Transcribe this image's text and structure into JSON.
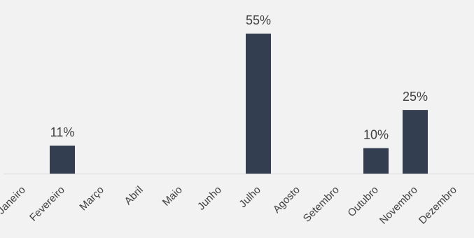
{
  "chart_data": {
    "type": "bar",
    "categories": [
      "Janeiro",
      "Fevereiro",
      "Março",
      "Abril",
      "Maio",
      "Junho",
      "Julho",
      "Agosto",
      "Setembro",
      "Outubro",
      "Novembro",
      "Dezembro"
    ],
    "series": [
      {
        "values": [
          0,
          11,
          0,
          0,
          0,
          0,
          55,
          0,
          0,
          10,
          25,
          0
        ],
        "data_labels": [
          "",
          "11%",
          "",
          "",
          "",
          "",
          "55%",
          "",
          "",
          "10%",
          "25%",
          ""
        ]
      }
    ],
    "title": "",
    "xlabel": "",
    "ylabel": "",
    "ylim": [
      0,
      55
    ],
    "value_unit": "%",
    "grid": false,
    "legend": "none",
    "colors": {
      "bar": "#333f50",
      "axis": "#d9d9d9",
      "label": "#404040",
      "background": "#f2f2f2"
    }
  }
}
